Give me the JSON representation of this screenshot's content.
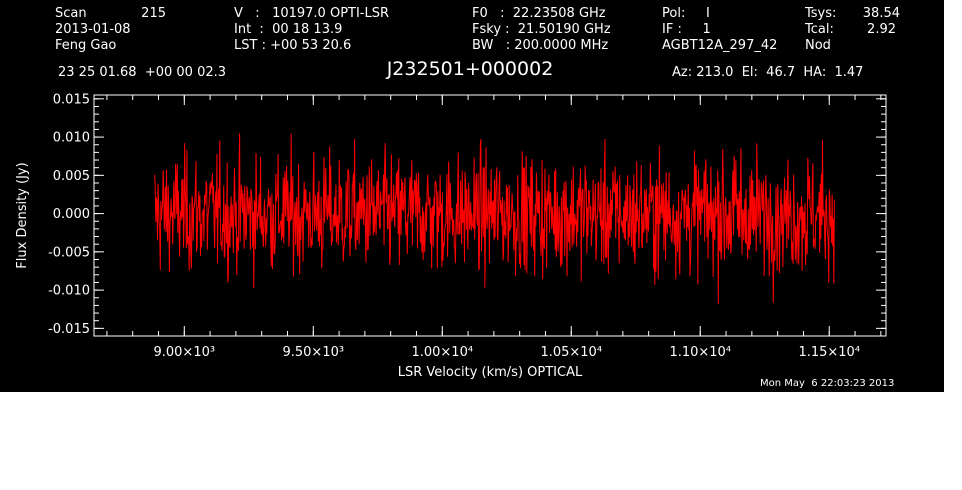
{
  "header": {
    "col1": {
      "scan_label": "Scan",
      "scan_value": "215",
      "date": "2013-01-08",
      "observer": "Feng Gao"
    },
    "col2": {
      "v_line": "V   :   10197.0 OPTI-LSR",
      "int_line": "Int  :  00 18 13.9",
      "lst_line": "LST : +00 53 20.6"
    },
    "col3": {
      "f0_line": "F0   :  22.23508 GHz",
      "fsky_line": "Fsky :  21.50190 GHz",
      "bw_line": "BW   : 200.0000 MHz"
    },
    "col4": {
      "pol_line": "Pol:     I",
      "if_line": "IF :     1",
      "project": "AGBT12A_297_42"
    },
    "col5": {
      "tsys_label": "Tsys:",
      "tsys_value": "38.54",
      "tcal_label": "Tcal:",
      "tcal_value": "2.92",
      "mode": "Nod"
    },
    "coords": "23 25 01.68  +00 00 02.3",
    "source": "J232501+000002",
    "pointing": "Az: 213.0  El:  46.7  HA:  1.47"
  },
  "footer_timestamp": "Mon May  6 22:03:23 2013",
  "colors": {
    "background": "#000000",
    "axes": "#ffffff",
    "trace": "#ff0000"
  },
  "chart_data": {
    "type": "line",
    "title": "J232501+000002",
    "xlabel": "LSR Velocity (km/s) OPTICAL",
    "ylabel": "Flux Density (Jy)",
    "xlim": [
      8650,
      11720
    ],
    "ylim": [
      -0.016,
      0.0155
    ],
    "x_ticks": [
      9000,
      9500,
      10000,
      10500,
      11000,
      11500
    ],
    "x_tick_labels": [
      "9.00×10³",
      "9.50×10³",
      "1.00×10⁴",
      "1.05×10⁴",
      "1.10×10⁴",
      "1.15×10⁴"
    ],
    "y_ticks": [
      0.015,
      0.01,
      0.005,
      0.0,
      -0.005,
      -0.01,
      -0.015
    ],
    "y_tick_labels": [
      "0.015",
      "0.010",
      "0.005",
      "0.000",
      "-0.005",
      "-0.010",
      "-0.015"
    ],
    "grid": false,
    "series": [
      {
        "x_start": 8885,
        "x_end": 11520,
        "mean": 0.0,
        "noise_rms": 0.0038,
        "peak_min": -0.012,
        "peak_max": 0.0105
      }
    ]
  }
}
